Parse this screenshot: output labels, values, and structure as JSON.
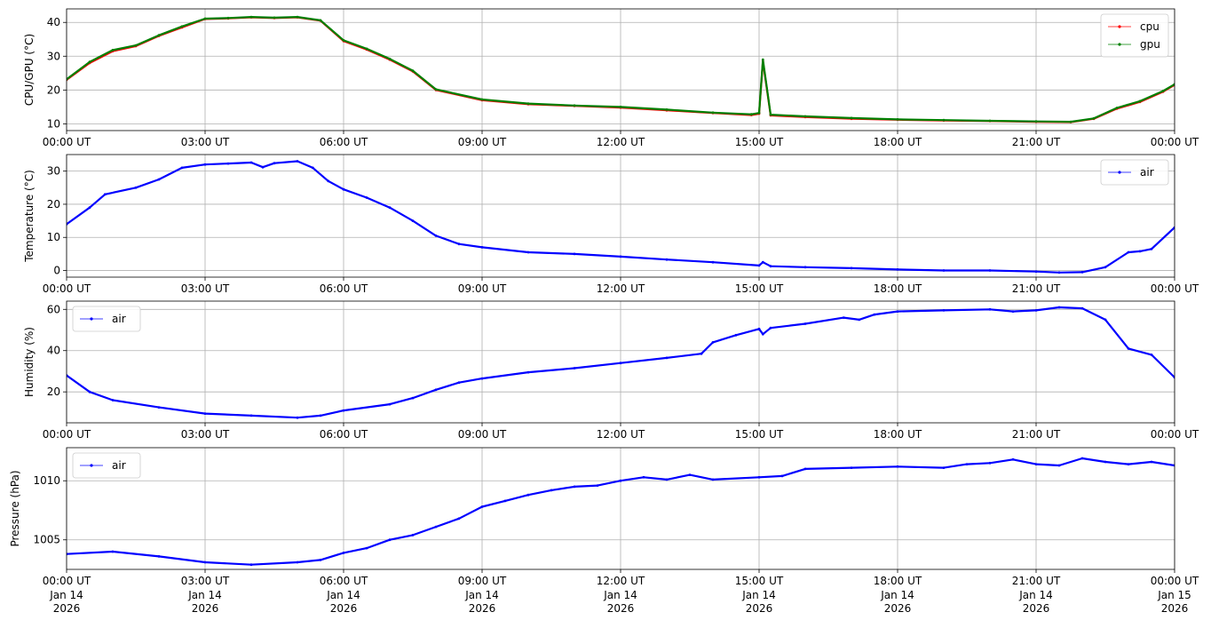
{
  "chart_data": [
    {
      "type": "line",
      "ylabel": "CPU/GPU (°C)",
      "ylim": [
        8,
        44
      ],
      "xlim": [
        "2026-01-14T00:00",
        "2026-01-15T00:00"
      ],
      "yticks": [
        10,
        20,
        30,
        40
      ],
      "xtick_labels": [
        "00:00 UT",
        "03:00 UT",
        "06:00 UT",
        "09:00 UT",
        "12:00 UT",
        "15:00 UT",
        "18:00 UT",
        "21:00 UT",
        "00:00 UT"
      ],
      "grid": true,
      "legend_position": "top-right",
      "series": [
        {
          "name": "cpu",
          "color": "#ff0000",
          "x": [
            "2026-01-14T00:00",
            "2026-01-14T00:30",
            "2026-01-14T01:00",
            "2026-01-14T01:30",
            "2026-01-14T02:00",
            "2026-01-14T02:30",
            "2026-01-14T03:00",
            "2026-01-14T03:30",
            "2026-01-14T04:00",
            "2026-01-14T04:30",
            "2026-01-14T05:00",
            "2026-01-14T05:30",
            "2026-01-14T06:00",
            "2026-01-14T06:30",
            "2026-01-14T07:00",
            "2026-01-14T07:30",
            "2026-01-14T08:00",
            "2026-01-14T09:00",
            "2026-01-14T10:00",
            "2026-01-14T11:00",
            "2026-01-14T12:00",
            "2026-01-14T13:00",
            "2026-01-14T14:00",
            "2026-01-14T14:50",
            "2026-01-14T15:00",
            "2026-01-14T15:05",
            "2026-01-14T15:15",
            "2026-01-14T16:00",
            "2026-01-14T17:00",
            "2026-01-14T18:00",
            "2026-01-14T19:00",
            "2026-01-14T20:00",
            "2026-01-14T21:00",
            "2026-01-14T21:45",
            "2026-01-14T22:15",
            "2026-01-14T22:45",
            "2026-01-14T23:15",
            "2026-01-14T23:45",
            "2026-01-15T00:00"
          ],
          "values": [
            23,
            28,
            31.5,
            33,
            36,
            38.5,
            41,
            41.2,
            41.5,
            41.3,
            41.5,
            40.5,
            34.5,
            32,
            29,
            25.5,
            20,
            17,
            15.8,
            15.3,
            14.8,
            14,
            13.2,
            12.6,
            13,
            28.5,
            12.5,
            12,
            11.5,
            11.2,
            11,
            10.8,
            10.6,
            10.5,
            11.5,
            14.5,
            16.5,
            19.5,
            21.5
          ]
        },
        {
          "name": "gpu",
          "color": "#008000",
          "x": [
            "2026-01-14T00:00",
            "2026-01-14T00:30",
            "2026-01-14T01:00",
            "2026-01-14T01:30",
            "2026-01-14T02:00",
            "2026-01-14T02:30",
            "2026-01-14T03:00",
            "2026-01-14T03:30",
            "2026-01-14T04:00",
            "2026-01-14T04:30",
            "2026-01-14T05:00",
            "2026-01-14T05:30",
            "2026-01-14T06:00",
            "2026-01-14T06:30",
            "2026-01-14T07:00",
            "2026-01-14T07:30",
            "2026-01-14T08:00",
            "2026-01-14T09:00",
            "2026-01-14T10:00",
            "2026-01-14T11:00",
            "2026-01-14T12:00",
            "2026-01-14T13:00",
            "2026-01-14T14:00",
            "2026-01-14T14:50",
            "2026-01-14T15:00",
            "2026-01-14T15:05",
            "2026-01-14T15:15",
            "2026-01-14T16:00",
            "2026-01-14T17:00",
            "2026-01-14T18:00",
            "2026-01-14T19:00",
            "2026-01-14T20:00",
            "2026-01-14T21:00",
            "2026-01-14T21:45",
            "2026-01-14T22:15",
            "2026-01-14T22:45",
            "2026-01-14T23:15",
            "2026-01-14T23:45",
            "2026-01-15T00:00"
          ],
          "values": [
            23.2,
            28.3,
            31.8,
            33.2,
            36.2,
            38.8,
            41.1,
            41.3,
            41.6,
            41.4,
            41.6,
            40.6,
            34.7,
            32.2,
            29.2,
            25.7,
            20.2,
            17.2,
            16,
            15.4,
            15,
            14.2,
            13.3,
            12.8,
            13.2,
            29,
            12.7,
            12.2,
            11.7,
            11.3,
            11.1,
            10.9,
            10.7,
            10.6,
            11.6,
            14.7,
            16.7,
            19.7,
            21.7
          ]
        }
      ]
    },
    {
      "type": "line",
      "ylabel": "Temperature (°C)",
      "ylim": [
        -2,
        35
      ],
      "xlim": [
        "2026-01-14T00:00",
        "2026-01-15T00:00"
      ],
      "yticks": [
        0,
        10,
        20,
        30
      ],
      "xtick_labels": [
        "00:00 UT",
        "03:00 UT",
        "06:00 UT",
        "09:00 UT",
        "12:00 UT",
        "15:00 UT",
        "18:00 UT",
        "21:00 UT",
        "00:00 UT"
      ],
      "grid": true,
      "legend_position": "top-right",
      "series": [
        {
          "name": "air",
          "color": "#0000ff",
          "x": [
            "2026-01-14T00:00",
            "2026-01-14T00:30",
            "2026-01-14T00:50",
            "2026-01-14T01:30",
            "2026-01-14T02:00",
            "2026-01-14T02:30",
            "2026-01-14T03:00",
            "2026-01-14T03:30",
            "2026-01-14T04:00",
            "2026-01-14T04:15",
            "2026-01-14T04:30",
            "2026-01-14T05:00",
            "2026-01-14T05:20",
            "2026-01-14T05:40",
            "2026-01-14T06:00",
            "2026-01-14T06:30",
            "2026-01-14T07:00",
            "2026-01-14T07:30",
            "2026-01-14T08:00",
            "2026-01-14T08:30",
            "2026-01-14T09:00",
            "2026-01-14T10:00",
            "2026-01-14T11:00",
            "2026-01-14T12:00",
            "2026-01-14T13:00",
            "2026-01-14T14:00",
            "2026-01-14T15:00",
            "2026-01-14T15:05",
            "2026-01-14T15:15",
            "2026-01-14T16:00",
            "2026-01-14T17:00",
            "2026-01-14T18:00",
            "2026-01-14T19:00",
            "2026-01-14T20:00",
            "2026-01-14T21:00",
            "2026-01-14T21:30",
            "2026-01-14T22:00",
            "2026-01-14T22:30",
            "2026-01-14T23:00",
            "2026-01-14T23:15",
            "2026-01-14T23:30",
            "2026-01-15T00:00"
          ],
          "values": [
            14,
            19,
            23,
            25,
            27.5,
            31,
            32,
            32.3,
            32.6,
            31.2,
            32.4,
            33,
            31,
            27,
            24.5,
            22,
            19,
            15,
            10.5,
            8,
            7,
            5.5,
            5,
            4.2,
            3.3,
            2.5,
            1.5,
            2.5,
            1.3,
            1,
            0.7,
            0.3,
            0,
            0,
            -0.3,
            -0.6,
            -0.5,
            1,
            5.5,
            5.8,
            6.5,
            13
          ]
        }
      ]
    },
    {
      "type": "line",
      "ylabel": "Humidity (%)",
      "ylim": [
        5,
        64
      ],
      "xlim": [
        "2026-01-14T00:00",
        "2026-01-15T00:00"
      ],
      "yticks": [
        20,
        40,
        60
      ],
      "xtick_labels": [
        "00:00 UT",
        "03:00 UT",
        "06:00 UT",
        "09:00 UT",
        "12:00 UT",
        "15:00 UT",
        "18:00 UT",
        "21:00 UT",
        "00:00 UT"
      ],
      "grid": true,
      "legend_position": "top-left",
      "series": [
        {
          "name": "air",
          "color": "#0000ff",
          "x": [
            "2026-01-14T00:00",
            "2026-01-14T00:30",
            "2026-01-14T01:00",
            "2026-01-14T02:00",
            "2026-01-14T03:00",
            "2026-01-14T04:00",
            "2026-01-14T05:00",
            "2026-01-14T05:30",
            "2026-01-14T06:00",
            "2026-01-14T07:00",
            "2026-01-14T07:30",
            "2026-01-14T08:00",
            "2026-01-14T08:30",
            "2026-01-14T09:00",
            "2026-01-14T10:00",
            "2026-01-14T11:00",
            "2026-01-14T12:00",
            "2026-01-14T13:00",
            "2026-01-14T13:45",
            "2026-01-14T14:00",
            "2026-01-14T14:30",
            "2026-01-14T15:00",
            "2026-01-14T15:05",
            "2026-01-14T15:15",
            "2026-01-14T16:00",
            "2026-01-14T16:50",
            "2026-01-14T17:10",
            "2026-01-14T17:30",
            "2026-01-14T18:00",
            "2026-01-14T19:00",
            "2026-01-14T20:00",
            "2026-01-14T20:30",
            "2026-01-14T21:00",
            "2026-01-14T21:30",
            "2026-01-14T22:00",
            "2026-01-14T22:30",
            "2026-01-14T23:00",
            "2026-01-14T23:30",
            "2026-01-15T00:00"
          ],
          "values": [
            28,
            20,
            16,
            12.5,
            9.5,
            8.5,
            7.5,
            8.5,
            11,
            14,
            17,
            21,
            24.5,
            26.5,
            29.5,
            31.5,
            34,
            36.5,
            38.5,
            44,
            47.5,
            50.5,
            48,
            51,
            53,
            56,
            55,
            57.5,
            59,
            59.5,
            60,
            59,
            59.5,
            61,
            60.5,
            55,
            41,
            38,
            27
          ]
        }
      ]
    },
    {
      "type": "line",
      "ylabel": "Pressure (hPa)",
      "ylim": [
        1002.5,
        1012.8
      ],
      "xlim": [
        "2026-01-14T00:00",
        "2026-01-15T00:00"
      ],
      "yticks": [
        1005,
        1010
      ],
      "xtick_labels": [
        "00:00 UT",
        "03:00 UT",
        "06:00 UT",
        "09:00 UT",
        "12:00 UT",
        "15:00 UT",
        "18:00 UT",
        "21:00 UT",
        "00:00 UT"
      ],
      "xtick_sublabels": [
        "Jan 14\n2026",
        "Jan 14\n2026",
        "Jan 14\n2026",
        "Jan 14\n2026",
        "Jan 14\n2026",
        "Jan 14\n2026",
        "Jan 14\n2026",
        "Jan 14\n2026",
        "Jan 15\n2026"
      ],
      "grid": true,
      "legend_position": "top-left",
      "series": [
        {
          "name": "air",
          "color": "#0000ff",
          "x": [
            "2026-01-14T00:00",
            "2026-01-14T01:00",
            "2026-01-14T02:00",
            "2026-01-14T03:00",
            "2026-01-14T04:00",
            "2026-01-14T05:00",
            "2026-01-14T05:30",
            "2026-01-14T06:00",
            "2026-01-14T06:30",
            "2026-01-14T07:00",
            "2026-01-14T07:30",
            "2026-01-14T08:00",
            "2026-01-14T08:30",
            "2026-01-14T09:00",
            "2026-01-14T09:30",
            "2026-01-14T10:00",
            "2026-01-14T10:30",
            "2026-01-14T11:00",
            "2026-01-14T11:30",
            "2026-01-14T12:00",
            "2026-01-14T12:30",
            "2026-01-14T13:00",
            "2026-01-14T13:30",
            "2026-01-14T14:00",
            "2026-01-14T15:00",
            "2026-01-14T15:30",
            "2026-01-14T16:00",
            "2026-01-14T17:00",
            "2026-01-14T18:00",
            "2026-01-14T19:00",
            "2026-01-14T19:30",
            "2026-01-14T20:00",
            "2026-01-14T20:30",
            "2026-01-14T21:00",
            "2026-01-14T21:30",
            "2026-01-14T22:00",
            "2026-01-14T22:30",
            "2026-01-14T23:00",
            "2026-01-14T23:30",
            "2026-01-15T00:00"
          ],
          "values": [
            1003.8,
            1004,
            1003.6,
            1003.1,
            1002.9,
            1003.1,
            1003.3,
            1003.9,
            1004.3,
            1005,
            1005.4,
            1006.1,
            1006.8,
            1007.8,
            1008.3,
            1008.8,
            1009.2,
            1009.5,
            1009.6,
            1010,
            1010.3,
            1010.1,
            1010.5,
            1010.1,
            1010.3,
            1010.4,
            1011,
            1011.1,
            1011.2,
            1011.1,
            1011.4,
            1011.5,
            1011.8,
            1011.4,
            1011.3,
            1011.9,
            1011.6,
            1011.4,
            1011.6,
            1011.3
          ]
        }
      ]
    }
  ]
}
